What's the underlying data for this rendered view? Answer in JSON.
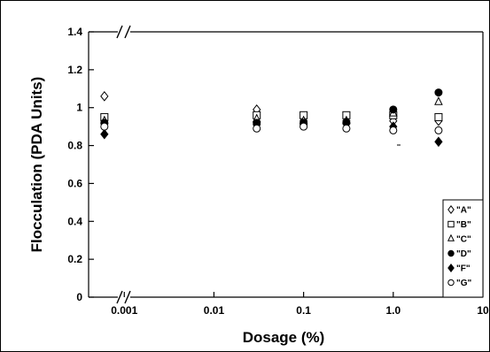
{
  "chart_data": {
    "type": "scatter",
    "title": "",
    "xlabel": "Dosage  (%)",
    "ylabel": "Flocculation (PDA Units)",
    "x_scale": "log",
    "xlim": [
      0.0004,
      10
    ],
    "ylim": [
      0,
      1.4
    ],
    "x_ticks": [
      {
        "value": 0.001,
        "label": "0.001"
      },
      {
        "value": 0.01,
        "label": "0.01"
      },
      {
        "value": 0.1,
        "label": "0.1"
      },
      {
        "value": 1.0,
        "label": "1.0"
      },
      {
        "value": 10,
        "label": "10"
      }
    ],
    "y_ticks": [
      {
        "value": 0,
        "label": "0"
      },
      {
        "value": 0.2,
        "label": "0.2"
      },
      {
        "value": 0.4,
        "label": "0.4"
      },
      {
        "value": 0.6,
        "label": "0.6"
      },
      {
        "value": 0.8,
        "label": "0.8"
      },
      {
        "value": 1,
        "label": "1"
      },
      {
        "value": 1.2,
        "label": "1.2"
      },
      {
        "value": 1.4,
        "label": "1.4"
      }
    ],
    "axis_break": "between 0.001 and 0.01",
    "grid": false,
    "legend_position": "bottom-right",
    "series": [
      {
        "name": "\"A\"",
        "marker": "diamond-open",
        "x": [
          0.0006,
          0.03,
          0.1,
          0.3,
          1.0,
          3.2
        ],
        "y": [
          1.06,
          0.99,
          0.93,
          0.93,
          0.93,
          0.93
        ]
      },
      {
        "name": "\"B\"",
        "marker": "square-open",
        "x": [
          0.0006,
          0.03,
          0.1,
          0.3,
          1.0,
          3.2
        ],
        "y": [
          0.95,
          0.96,
          0.96,
          0.96,
          0.96,
          0.95
        ]
      },
      {
        "name": "\"C\"",
        "marker": "triangle-open",
        "x": [
          0.0006,
          0.03,
          0.1,
          0.3,
          1.0,
          3.2
        ],
        "y": [
          0.93,
          0.94,
          0.93,
          0.93,
          0.97,
          1.03
        ]
      },
      {
        "name": "\"D\"",
        "marker": "circle-filled",
        "x": [
          0.0006,
          0.03,
          0.1,
          0.3,
          1.0,
          3.2
        ],
        "y": [
          0.92,
          0.92,
          0.92,
          0.92,
          0.99,
          1.08
        ]
      },
      {
        "name": "\"F\"",
        "marker": "diamond-filled",
        "x": [
          0.0006,
          0.03,
          0.1,
          0.3,
          1.0,
          3.2
        ],
        "y": [
          0.86,
          0.91,
          0.91,
          0.92,
          0.9,
          0.82
        ]
      },
      {
        "name": "\"G\"",
        "marker": "circle-open",
        "x": [
          0.0006,
          0.03,
          0.1,
          0.3,
          1.0,
          3.2
        ],
        "y": [
          0.9,
          0.89,
          0.9,
          0.89,
          0.88,
          0.88
        ]
      }
    ]
  }
}
